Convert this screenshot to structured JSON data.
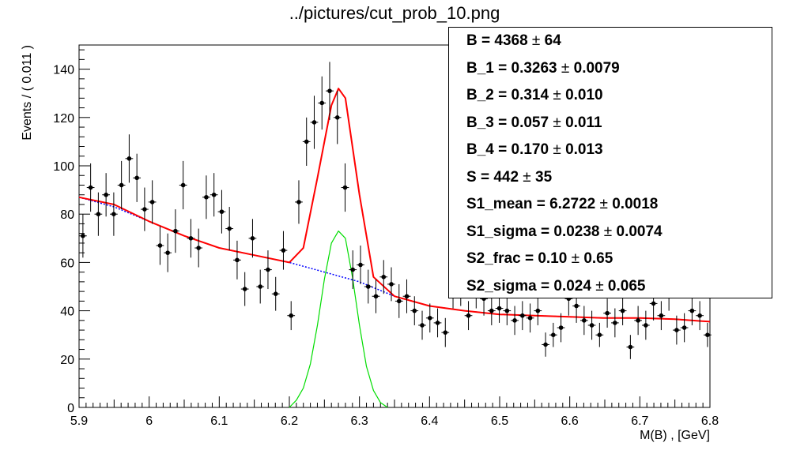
{
  "title": "../pictures/cut_prob_10.png",
  "stats_box": [
    {
      "label": "B = ",
      "value": "4368",
      "error": "64"
    },
    {
      "label": "B_1 = ",
      "value": "0.3263",
      "error": "0.0079"
    },
    {
      "label": "B_2 = ",
      "value": "0.314",
      "error": "0.010"
    },
    {
      "label": "B_3 = ",
      "value": "0.057",
      "error": "0.011"
    },
    {
      "label": "B_4 = ",
      "value": "0.170",
      "error": "0.013"
    },
    {
      "label": "S = ",
      "value": "442",
      "error": "35"
    },
    {
      "label": "S1_mean = ",
      "value": "6.2722",
      "error": "0.0018"
    },
    {
      "label": "S1_sigma = ",
      "value": "0.0238",
      "error": "0.0074"
    },
    {
      "label": "S2_frac = ",
      "value": "0.10",
      "error": "0.65"
    },
    {
      "label": "S2_sigma = ",
      "value": "0.024",
      "error": "0.065"
    }
  ],
  "chart_data": {
    "type": "scatter",
    "xlabel": "M(B) , [GeV]",
    "ylabel": "Events / ( 0.011 )",
    "xlim": [
      5.9,
      6.8
    ],
    "ylim": [
      0,
      150
    ],
    "xticks": [
      "5.9",
      "6",
      "6.1",
      "6.2",
      "6.3",
      "6.4",
      "6.5",
      "6.6",
      "6.7",
      "6.8"
    ],
    "yticks": [
      "0",
      "20",
      "40",
      "60",
      "80",
      "100",
      "120",
      "140"
    ],
    "colors": {
      "data": "#000000",
      "total_fit": "#ff0000",
      "background": "#0000ff",
      "signal": "#00dd00"
    },
    "series": [
      {
        "x": [
          5.9055,
          5.9165,
          5.9275,
          5.9385,
          5.9495,
          5.9605,
          5.9715,
          5.9825,
          5.9935,
          6.0045,
          6.0155,
          6.0265,
          6.0375,
          6.0485,
          6.0595,
          6.0705,
          6.0815,
          6.0925,
          6.1035,
          6.1145,
          6.1255,
          6.1365,
          6.1475,
          6.1585,
          6.1695,
          6.1805,
          6.1915,
          6.2025,
          6.2135,
          6.2245,
          6.2355,
          6.2465,
          6.2575,
          6.2685,
          6.2795,
          6.2905,
          6.3015,
          6.3125,
          6.3235,
          6.3345,
          6.3455,
          6.3565,
          6.3675,
          6.3785,
          6.3895,
          6.4005,
          6.4115,
          6.4225,
          6.4335,
          6.4445,
          6.4555,
          6.4665,
          6.4775,
          6.4885,
          6.4995,
          6.5105,
          6.5215,
          6.5325,
          6.5435,
          6.5545,
          6.5655,
          6.5765,
          6.5875,
          6.5985,
          6.6095,
          6.6205,
          6.6315,
          6.6425,
          6.6535,
          6.6645,
          6.6755,
          6.6865,
          6.6975,
          6.7085,
          6.7195,
          6.7305,
          6.7415,
          6.7525,
          6.7635,
          6.7745,
          6.7855,
          6.7965
        ],
        "y": [
          71,
          91,
          80,
          88,
          80,
          92,
          103,
          95,
          82,
          85,
          67,
          64,
          73,
          92,
          70,
          66,
          87,
          88,
          81,
          74,
          61,
          49,
          70,
          50,
          57,
          47,
          65,
          38,
          85,
          110,
          118,
          126,
          131,
          120,
          91,
          57,
          59,
          50,
          46,
          54,
          51,
          44,
          46,
          40,
          34,
          37,
          35,
          31,
          48,
          49,
          38,
          48,
          45,
          40,
          41,
          40,
          36,
          38,
          37,
          40,
          26,
          30,
          33,
          45,
          42,
          36,
          34,
          30,
          39,
          35,
          40,
          25,
          36,
          34,
          43,
          38,
          47,
          32,
          33,
          40,
          38,
          30
        ],
        "yerr": [
          9,
          10,
          9,
          9,
          9,
          10,
          10,
          10,
          9,
          9,
          8,
          8,
          9,
          10,
          8,
          8,
          9,
          9,
          9,
          9,
          8,
          7,
          8,
          7,
          8,
          7,
          8,
          6,
          9,
          10,
          11,
          11,
          12,
          11,
          10,
          8,
          8,
          7,
          7,
          7,
          7,
          7,
          7,
          6,
          6,
          6,
          6,
          6,
          7,
          7,
          6,
          7,
          7,
          6,
          6,
          6,
          6,
          6,
          6,
          6,
          5,
          5,
          6,
          7,
          7,
          6,
          6,
          5,
          6,
          6,
          6,
          5,
          6,
          6,
          7,
          6,
          7,
          6,
          6,
          6,
          6,
          5
        ]
      },
      {
        "x": [
          5.9,
          5.95,
          6.0,
          6.05,
          6.1,
          6.15,
          6.2,
          6.22,
          6.24,
          6.26,
          6.27,
          6.28,
          6.3,
          6.32,
          6.35,
          6.4,
          6.45,
          6.5,
          6.55,
          6.6,
          6.65,
          6.7,
          6.75,
          6.8
        ],
        "y": [
          87,
          84,
          77,
          71,
          66,
          63,
          60,
          66,
          95,
          125,
          132,
          128,
          88,
          54,
          46,
          42,
          40,
          38.5,
          38,
          37.5,
          37,
          37,
          36.5,
          35.5
        ]
      },
      {
        "x": [
          5.9,
          5.95,
          6.0,
          6.05,
          6.1,
          6.15,
          6.2,
          6.25,
          6.3,
          6.35,
          6.4,
          6.45,
          6.5,
          6.55,
          6.6,
          6.65,
          6.7,
          6.75,
          6.8
        ],
        "y": [
          87,
          83,
          77,
          71,
          66,
          63,
          60,
          56,
          52,
          46,
          42,
          40,
          38.5,
          38,
          37.5,
          37,
          37,
          36.5,
          35.5
        ]
      },
      {
        "x": [
          6.2,
          6.21,
          6.22,
          6.23,
          6.24,
          6.25,
          6.26,
          6.27,
          6.28,
          6.29,
          6.3,
          6.31,
          6.32,
          6.33,
          6.34
        ],
        "y": [
          0,
          3,
          8,
          18,
          34,
          53,
          68,
          73,
          70,
          54,
          34,
          17,
          7,
          2,
          0
        ]
      }
    ]
  }
}
